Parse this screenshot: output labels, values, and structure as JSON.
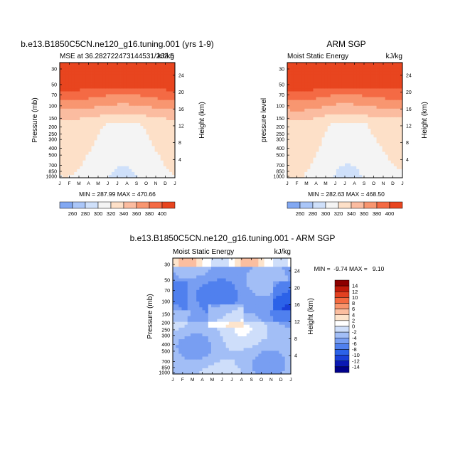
{
  "chart_data": [
    {
      "type": "heatmap",
      "title": "b.e13.B1850C5CN.ne120_g16.tuning.001 (yrs 1-9)",
      "subtitle_left": "MSE at 36.282722473144531/262.5",
      "subtitle_right": "kJ/kg",
      "ylabel": "Pressure (mb)",
      "ylabel_right": "Height (km)",
      "x_ticks": [
        "J",
        "F",
        "M",
        "A",
        "M",
        "J",
        "J",
        "A",
        "S",
        "O",
        "N",
        "D",
        "J"
      ],
      "y_ticks": [
        "30",
        "50",
        "70",
        "100",
        "150",
        "200",
        "250",
        "300",
        "400",
        "500",
        "700",
        "850",
        "1000"
      ],
      "y_right_ticks": [
        "24",
        "20",
        "16",
        "12",
        "8",
        "4"
      ],
      "stats": "MIN = 287.99 MAX = 470.66",
      "min": 287.99,
      "max": 470.66,
      "levels": [
        260,
        280,
        300,
        320,
        340,
        360,
        380,
        400
      ],
      "colorbar_labels": [
        "260",
        "280",
        "300",
        "320",
        "340",
        "360",
        "380",
        "400"
      ]
    },
    {
      "type": "heatmap",
      "title": "ARM SGP",
      "subtitle_left": "Moist Static Energy",
      "subtitle_right": "kJ/kg",
      "ylabel": "pressure level",
      "ylabel_right": "Height (km)",
      "x_ticks": [
        "J",
        "F",
        "M",
        "A",
        "M",
        "J",
        "J",
        "A",
        "S",
        "O",
        "N",
        "D",
        "J"
      ],
      "y_ticks": [
        "30",
        "50",
        "70",
        "100",
        "150",
        "200",
        "250",
        "300",
        "400",
        "500",
        "700",
        "850",
        "1000"
      ],
      "y_right_ticks": [
        "24",
        "20",
        "16",
        "12",
        "8",
        "4"
      ],
      "stats": "MIN = 282.63 MAX = 468.50",
      "min": 282.63,
      "max": 468.5,
      "levels": [
        260,
        280,
        300,
        320,
        340,
        360,
        380,
        400
      ],
      "colorbar_labels": [
        "260",
        "280",
        "300",
        "320",
        "340",
        "360",
        "380",
        "400"
      ]
    },
    {
      "type": "heatmap",
      "title": "b.e13.B1850C5CN.ne120_g16.tuning.001 - ARM SGP",
      "subtitle_left": "Moist Static Energy",
      "subtitle_right": "kJ/kg",
      "ylabel": "Pressure (mb)",
      "ylabel_right": "Height (km)",
      "x_ticks": [
        "J",
        "F",
        "M",
        "A",
        "M",
        "J",
        "J",
        "A",
        "S",
        "O",
        "N",
        "D",
        "J"
      ],
      "y_ticks": [
        "30",
        "50",
        "70",
        "100",
        "150",
        "200",
        "250",
        "300",
        "400",
        "500",
        "700",
        "850",
        "1000"
      ],
      "y_right_ticks": [
        "24",
        "20",
        "16",
        "12",
        "8",
        "4"
      ],
      "stats": "MIN =  -9.74 MAX =   9.10",
      "min": -9.74,
      "max": 9.1,
      "levels": [
        -14,
        -12,
        -10,
        -8,
        -6,
        -4,
        -2,
        0,
        2,
        4,
        6,
        8,
        10,
        12,
        14
      ],
      "colorbar_labels": [
        "14",
        "12",
        "10",
        "8",
        "6",
        "4",
        "2",
        "0",
        "-2",
        "-4",
        "-6",
        "-8",
        "-10",
        "-12",
        "-14"
      ]
    }
  ],
  "colors": {
    "abs_scale": [
      "#08088a",
      "#1530c8",
      "#2a58e0",
      "#5584ec",
      "#82a8f2",
      "#aac6f8",
      "#cfe0fa",
      "#f4f4f4",
      "#fde0c8",
      "#fbbca0",
      "#f89670",
      "#f46a44",
      "#e8451f",
      "#c8240e",
      "#a01008",
      "#800000"
    ],
    "diff_scale": [
      "#00008a",
      "#0a18b4",
      "#1a40d8",
      "#2c62e8",
      "#5080ee",
      "#789ef2",
      "#a2bef6",
      "#cedefa",
      "#ffffff",
      "#fde4cc",
      "#fbbea0",
      "#f8946c",
      "#f46a40",
      "#e24020",
      "#c01a0a",
      "#8c0000"
    ]
  }
}
